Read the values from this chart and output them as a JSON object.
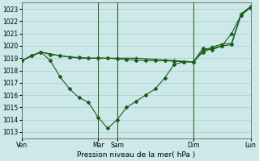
{
  "xlabel": "Pression niveau de la mer( hPa )",
  "bg_color": "#cce8e8",
  "line_color": "#1a5c1a",
  "grid_color": "#aacccc",
  "ylim": [
    1012.5,
    1023.5
  ],
  "yticks": [
    1013,
    1014,
    1015,
    1016,
    1017,
    1018,
    1019,
    1020,
    1021,
    1022,
    1023
  ],
  "xlim": [
    0,
    24
  ],
  "vline_x": [
    8,
    10,
    18,
    24
  ],
  "xtick_positions": [
    0,
    8,
    10,
    18,
    24
  ],
  "xtick_labels": [
    "Ven",
    "Mar",
    "Sam",
    "Dim",
    "Lun"
  ],
  "series1_x": [
    0,
    1,
    2,
    3,
    4,
    5,
    6,
    7,
    8,
    9,
    10,
    11,
    12,
    13,
    14,
    15,
    16,
    17,
    18,
    19,
    20,
    21,
    22,
    23,
    24
  ],
  "series1_y": [
    1018.8,
    1019.2,
    1019.5,
    1019.3,
    1019.2,
    1019.1,
    1019.05,
    1019.0,
    1019.0,
    1019.0,
    1018.95,
    1018.9,
    1018.85,
    1018.8,
    1018.8,
    1018.8,
    1018.75,
    1018.7,
    1018.7,
    1019.5,
    1019.8,
    1020.0,
    1020.1,
    1022.5,
    1023.1
  ],
  "series2_x": [
    0,
    2,
    4,
    6,
    8,
    10,
    12,
    14,
    16,
    18,
    19,
    20,
    21,
    22,
    23,
    24
  ],
  "series2_y": [
    1018.8,
    1019.5,
    1019.2,
    1019.0,
    1019.0,
    1019.0,
    1019.0,
    1018.9,
    1018.8,
    1018.7,
    1019.6,
    1019.9,
    1020.15,
    1020.2,
    1022.6,
    1023.2
  ],
  "series3_x": [
    0,
    1,
    2,
    3,
    4,
    5,
    6,
    7,
    8,
    9,
    10,
    11,
    12,
    13,
    14,
    15,
    16,
    17,
    18,
    19,
    20,
    21,
    22,
    23,
    24
  ],
  "series3_y": [
    1018.8,
    1019.2,
    1019.5,
    1018.8,
    1017.5,
    1016.5,
    1015.8,
    1015.4,
    1014.2,
    1013.3,
    1014.0,
    1015.0,
    1015.5,
    1016.0,
    1016.5,
    1017.4,
    1018.5,
    1018.7,
    1018.7,
    1019.8,
    1019.7,
    1020.0,
    1021.0,
    1022.5,
    1023.2
  ],
  "marker_size": 2.0,
  "line_width": 0.8
}
